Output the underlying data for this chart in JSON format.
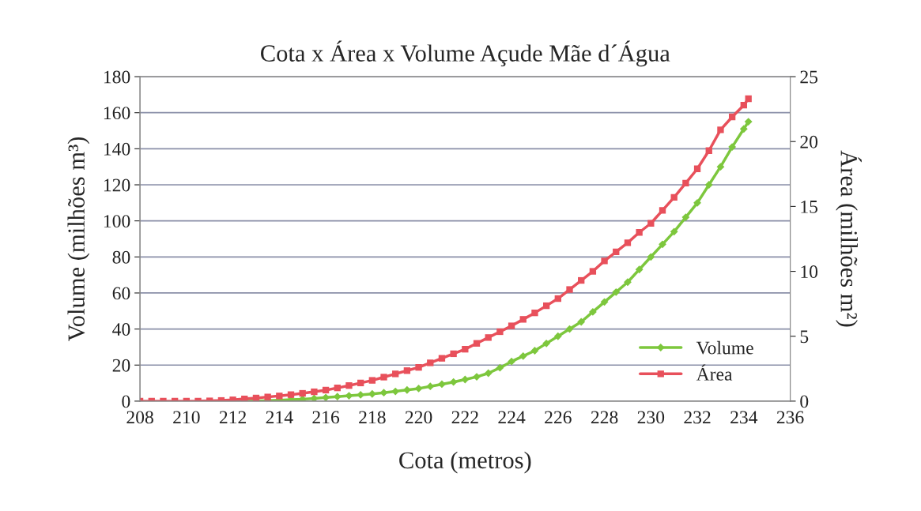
{
  "chart_data": {
    "type": "line",
    "title": "Cota x Área x Volume Açude Mãe d´Água",
    "xlabel": "Cota (metros)",
    "ylabel": "Volume (milhões m³)",
    "y2label": "Área (milhões m²)",
    "xlim": [
      208,
      236
    ],
    "xticks": [
      208,
      210,
      212,
      214,
      216,
      218,
      220,
      222,
      224,
      226,
      228,
      230,
      232,
      234,
      236
    ],
    "ylim": [
      0,
      180
    ],
    "yticks": [
      0,
      20,
      40,
      60,
      80,
      100,
      120,
      140,
      160,
      180
    ],
    "y2lim": [
      0,
      25
    ],
    "y2ticks": [
      0,
      5,
      10,
      15,
      20,
      25
    ],
    "grid": "y",
    "legend": "bottom right",
    "line_style": "solid",
    "x": [
      208,
      208.5,
      209,
      209.5,
      210,
      210.5,
      211,
      211.5,
      212,
      212.5,
      213,
      213.5,
      214,
      214.5,
      215,
      215.5,
      216,
      216.5,
      217,
      217.5,
      218,
      218.5,
      219,
      219.5,
      220,
      220.5,
      221,
      221.5,
      222,
      222.5,
      223,
      223.5,
      224,
      224.5,
      225,
      225.5,
      226,
      226.5,
      227,
      227.5,
      228,
      228.5,
      229,
      229.5,
      230,
      230.5,
      231,
      231.5,
      232,
      232.5,
      233,
      233.5,
      234,
      234.2
    ],
    "series": [
      {
        "name": "Volume",
        "color": "#7dc73d",
        "marker": "diamond",
        "values": [
          null,
          null,
          null,
          null,
          null,
          null,
          null,
          null,
          0,
          0,
          0.1,
          0.3,
          0.5,
          0.8,
          1.1,
          1.5,
          2,
          2.5,
          3,
          3.5,
          4,
          4.7,
          5.4,
          6.2,
          7,
          8.2,
          9.4,
          10.6,
          12,
          13.5,
          15.5,
          18.5,
          22,
          25,
          28,
          32,
          36,
          40,
          44,
          49.5,
          55,
          60.5,
          66,
          73,
          80,
          87,
          94,
          102,
          110,
          120,
          130,
          141,
          151,
          155
        ]
      },
      {
        "name": "Área",
        "color": "#e8505b",
        "marker": "square",
        "axis": "y2",
        "values": [
          0,
          0,
          0,
          0,
          0,
          0,
          0.02,
          0.05,
          0.1,
          0.17,
          0.24,
          0.32,
          0.4,
          0.5,
          0.6,
          0.72,
          0.85,
          1.02,
          1.2,
          1.4,
          1.6,
          1.85,
          2.1,
          2.35,
          2.6,
          2.95,
          3.3,
          3.65,
          4.0,
          4.45,
          4.9,
          5.35,
          5.8,
          6.3,
          6.8,
          7.35,
          7.9,
          8.6,
          9.3,
          10.0,
          10.8,
          11.5,
          12.2,
          13.0,
          13.7,
          14.7,
          15.7,
          16.8,
          17.9,
          19.3,
          20.9,
          21.9,
          22.8,
          23.3
        ]
      }
    ]
  }
}
